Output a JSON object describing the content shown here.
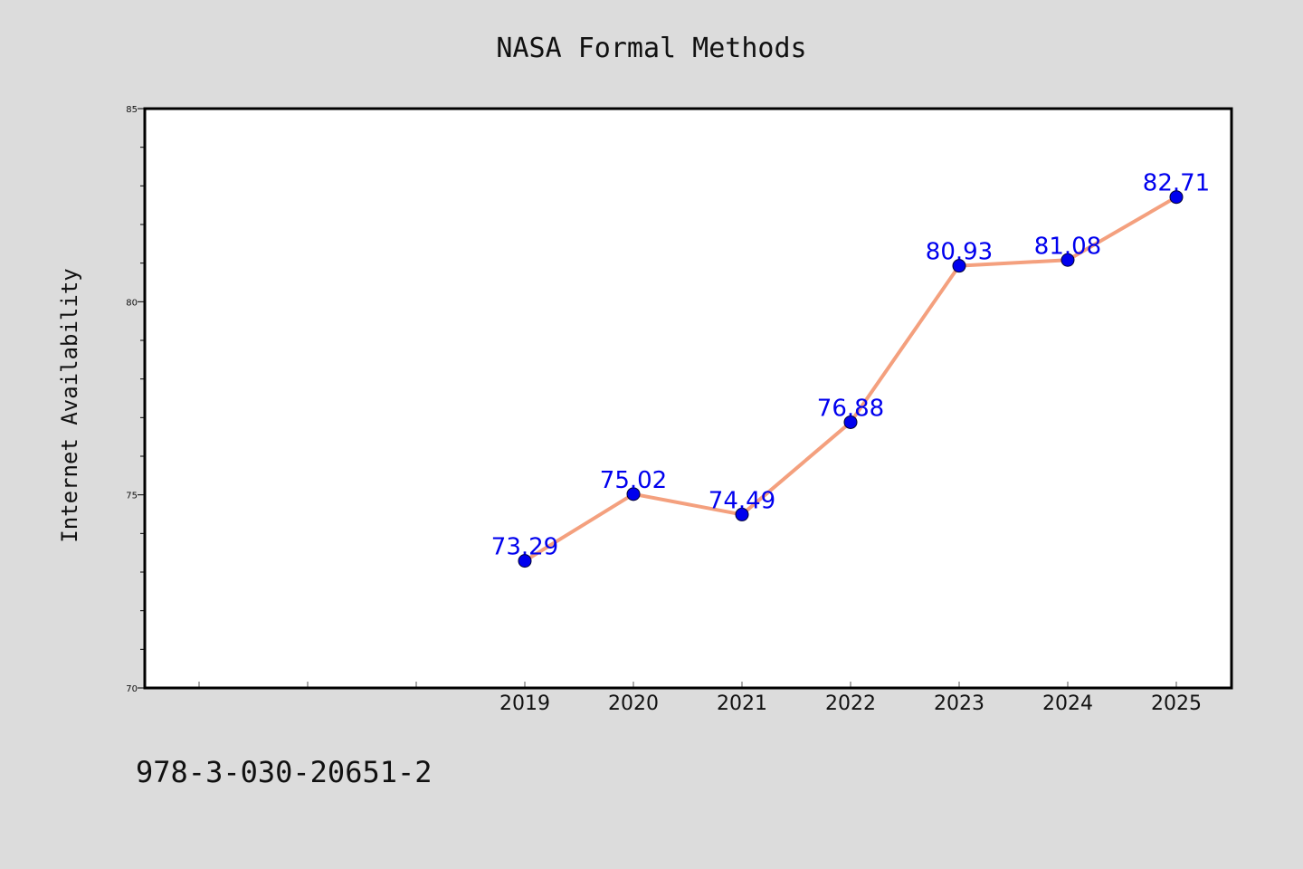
{
  "chart_data": {
    "type": "line",
    "title": "NASA Formal Methods",
    "xlabel": "",
    "ylabel": "Internet Availability",
    "x": [
      "2019",
      "2020",
      "2021",
      "2022",
      "2023",
      "2024",
      "2025"
    ],
    "series": [
      {
        "values": [
          73.29,
          75.02,
          74.49,
          76.88,
          80.93,
          81.08,
          82.71
        ],
        "labels": [
          "73.29",
          "75.02",
          "74.49",
          "76.88",
          "80.93",
          "81.08",
          "82.71"
        ]
      }
    ],
    "ylim": [
      70,
      85
    ],
    "yticks": [
      "70",
      "75",
      "80",
      "85"
    ],
    "x_slots": 10,
    "grid": false,
    "legend": "none",
    "colors": {
      "line": "#f4a07e",
      "marker": "#0000ee",
      "labels": "#0000ee",
      "background": "#dcdcdc",
      "plot_background": "#ffffff"
    }
  },
  "footnote": "978-3-030-20651-2"
}
